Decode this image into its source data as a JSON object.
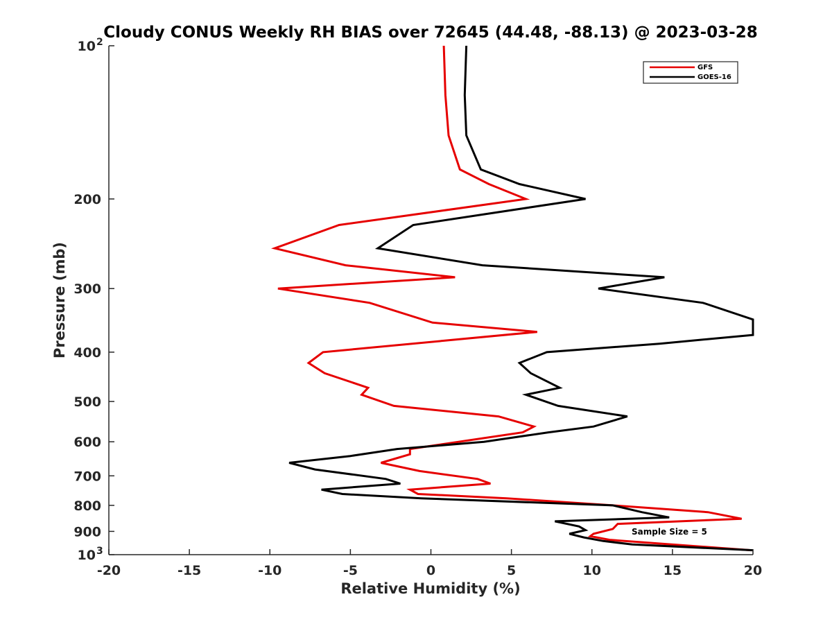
{
  "chart_data": {
    "type": "line",
    "title": "Cloudy CONUS Weekly RH BIAS over 72645 (44.48, -88.13) @ 2023-03-28",
    "xlabel": "Relative Humidity (%)",
    "ylabel": "Pressure (mb)",
    "xlim": [
      -20,
      20
    ],
    "ylim": [
      100,
      1000
    ],
    "y_scale": "log",
    "y_reversed": true,
    "grid": false,
    "legend_position": "top-right",
    "x_ticks": [
      -20,
      -15,
      -10,
      -5,
      0,
      5,
      10,
      15,
      20
    ],
    "x_tick_labels": [
      "-20",
      "-15",
      "-10",
      "-5",
      "0",
      "5",
      "10",
      "15",
      "20"
    ],
    "y_ticks": [
      100,
      200,
      300,
      400,
      500,
      600,
      700,
      800,
      900,
      1000
    ],
    "y_tick_labels": [
      {
        "base": "10",
        "exp": "2"
      },
      {
        "base": "200",
        "exp": ""
      },
      {
        "base": "300",
        "exp": ""
      },
      {
        "base": "400",
        "exp": ""
      },
      {
        "base": "500",
        "exp": ""
      },
      {
        "base": "600",
        "exp": ""
      },
      {
        "base": "700",
        "exp": ""
      },
      {
        "base": "800",
        "exp": ""
      },
      {
        "base": "900",
        "exp": ""
      },
      {
        "base": "10",
        "exp": "3"
      }
    ],
    "series": [
      {
        "name": "GFS",
        "color": "#e60000",
        "points": [
          [
            0.8,
            100
          ],
          [
            0.9,
            125
          ],
          [
            1.1,
            150
          ],
          [
            1.8,
            175
          ],
          [
            3.6,
            187
          ],
          [
            5.9,
            200
          ],
          [
            -5.7,
            225
          ],
          [
            -9.7,
            250
          ],
          [
            -5.3,
            270
          ],
          [
            1.5,
            285
          ],
          [
            -9.5,
            300
          ],
          [
            -3.8,
            320
          ],
          [
            0.1,
            350
          ],
          [
            6.6,
            365
          ],
          [
            -6.7,
            400
          ],
          [
            -7.6,
            420
          ],
          [
            -6.6,
            440
          ],
          [
            -3.9,
            470
          ],
          [
            -4.3,
            485
          ],
          [
            -2.3,
            510
          ],
          [
            4.2,
            535
          ],
          [
            6.4,
            560
          ],
          [
            5.7,
            575
          ],
          [
            -1.3,
            620
          ],
          [
            -1.3,
            635
          ],
          [
            -3.1,
            660
          ],
          [
            -0.7,
            685
          ],
          [
            2.9,
            710
          ],
          [
            3.7,
            725
          ],
          [
            -1.3,
            745
          ],
          [
            -0.8,
            760
          ],
          [
            4.7,
            775
          ],
          [
            11.3,
            800
          ],
          [
            17.2,
            825
          ],
          [
            19.3,
            850
          ],
          [
            11.6,
            870
          ],
          [
            11.3,
            890
          ],
          [
            10.1,
            910
          ],
          [
            9.9,
            920
          ],
          [
            11.1,
            935
          ],
          [
            14.0,
            950
          ],
          [
            19.9,
            980
          ]
        ]
      },
      {
        "name": "GOES-16",
        "color": "#000000",
        "points": [
          [
            2.2,
            100
          ],
          [
            2.1,
            125
          ],
          [
            2.2,
            150
          ],
          [
            3.1,
            175
          ],
          [
            5.5,
            187
          ],
          [
            9.6,
            200
          ],
          [
            -1.1,
            225
          ],
          [
            -3.3,
            250
          ],
          [
            3.2,
            270
          ],
          [
            14.5,
            285
          ],
          [
            10.4,
            300
          ],
          [
            16.9,
            320
          ],
          [
            20.0,
            345
          ],
          [
            20.0,
            370
          ],
          [
            14.2,
            385
          ],
          [
            7.2,
            400
          ],
          [
            5.5,
            420
          ],
          [
            6.2,
            440
          ],
          [
            8.0,
            470
          ],
          [
            5.9,
            485
          ],
          [
            7.9,
            510
          ],
          [
            12.2,
            535
          ],
          [
            10.1,
            560
          ],
          [
            7.3,
            575
          ],
          [
            3.3,
            600
          ],
          [
            -2.1,
            620
          ],
          [
            -5.0,
            640
          ],
          [
            -8.8,
            660
          ],
          [
            -7.2,
            680
          ],
          [
            -2.8,
            710
          ],
          [
            -1.9,
            725
          ],
          [
            -6.8,
            745
          ],
          [
            -5.5,
            760
          ],
          [
            -0.6,
            775
          ],
          [
            11.3,
            800
          ],
          [
            13.1,
            825
          ],
          [
            14.8,
            845
          ],
          [
            7.7,
            860
          ],
          [
            9.2,
            880
          ],
          [
            9.6,
            895
          ],
          [
            8.6,
            910
          ],
          [
            9.5,
            925
          ],
          [
            10.7,
            940
          ],
          [
            12.5,
            955
          ],
          [
            20.0,
            980
          ]
        ]
      }
    ],
    "annotations": [
      "Sample Size = 5"
    ]
  }
}
